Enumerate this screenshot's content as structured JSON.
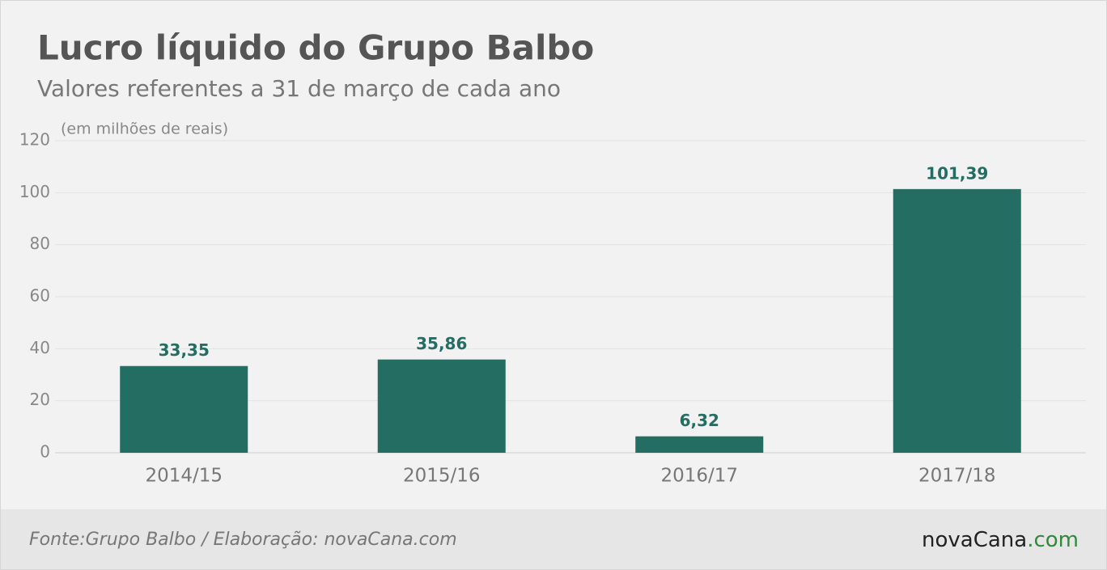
{
  "chart_data": {
    "type": "bar",
    "title": "Lucro líquido do Grupo Balbo",
    "subtitle": "Valores referentes a 31 de março de cada ano",
    "unit_label": "(em milhões de reais)",
    "categories": [
      "2014/15",
      "2015/16",
      "2016/17",
      "2017/18"
    ],
    "values": [
      33.35,
      35.86,
      6.32,
      101.39
    ],
    "value_labels": [
      "33,35",
      "35,86",
      "6,32",
      "101,39"
    ],
    "color": "#236d63",
    "ylim": [
      0,
      120
    ],
    "yticks": [
      0,
      20,
      40,
      60,
      80,
      100,
      120
    ],
    "grid": true,
    "source": "Fonte:Grupo Balbo / Elaboração: novaCana.com",
    "logo": {
      "name": "novaCana",
      "suffix": ".com"
    }
  }
}
